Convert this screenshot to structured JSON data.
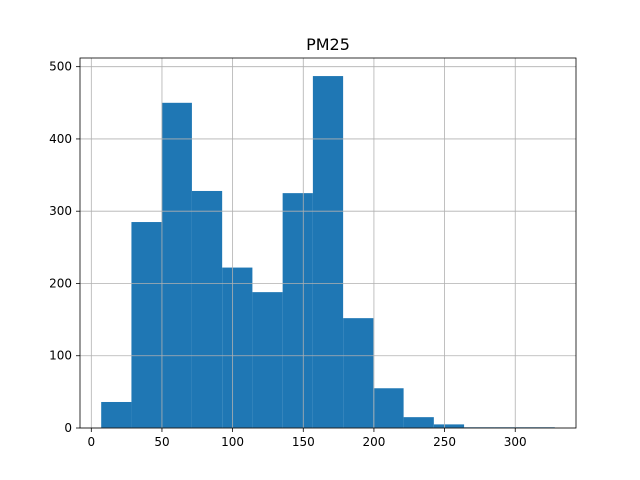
{
  "chart_data": {
    "type": "bar",
    "title": "PM25",
    "xlabel": "",
    "ylabel": "",
    "xlim": [
      -8,
      343
    ],
    "ylim": [
      0,
      512
    ],
    "grid": true,
    "bin_edges": [
      7,
      28.4,
      49.8,
      71.2,
      92.6,
      114,
      135.4,
      156.8,
      178.2,
      199.6,
      221,
      242.4,
      263.8,
      285.2,
      306.6,
      328
    ],
    "values": [
      36,
      285,
      450,
      328,
      222,
      188,
      325,
      487,
      152,
      55,
      15,
      5,
      1,
      1,
      1
    ],
    "x_ticks": [
      0,
      50,
      100,
      150,
      200,
      250,
      300
    ],
    "x_tick_labels": [
      "0",
      "50",
      "100",
      "150",
      "200",
      "250",
      "300"
    ],
    "y_ticks": [
      0,
      100,
      200,
      300,
      400,
      500
    ],
    "y_tick_labels": [
      "0",
      "100",
      "200",
      "300",
      "400",
      "500"
    ],
    "colors": {
      "bar": "#1f77b4",
      "grid": "#b0b0b0",
      "axis": "#000000"
    }
  }
}
